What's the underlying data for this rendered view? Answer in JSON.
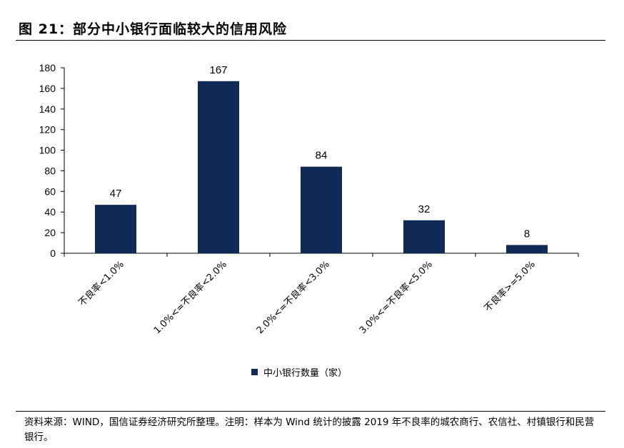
{
  "figure_title": "图 21：部分中小银行面临较大的信用风险",
  "source_note": "资料来源：WIND，国信证券经济研究所整理。注明：样本为 Wind 统计的披露 2019 年不良率的城农商行、农信社、村镇银行和民营银行。",
  "colors": {
    "bar": "#0f2a57",
    "axis": "#000000"
  },
  "chart_data": {
    "type": "bar",
    "categories": [
      "不良率<1.0%",
      "1.0%<=不良率<2.0%",
      "2.0%<=不良率<3.0%",
      "3.0%<=不良率<5.0%",
      "不良率>=5.0%"
    ],
    "series": [
      {
        "name": "中小银行数量（家）",
        "values": [
          47,
          167,
          84,
          32,
          8
        ]
      }
    ],
    "data_labels": [
      "47",
      "167",
      "84",
      "32",
      "8"
    ],
    "yticks": [
      0,
      20,
      40,
      60,
      80,
      100,
      120,
      140,
      160,
      180
    ],
    "ylim": [
      0,
      180
    ],
    "xlabel": "",
    "ylabel": "",
    "grid": false,
    "legend": "bottom-center"
  }
}
